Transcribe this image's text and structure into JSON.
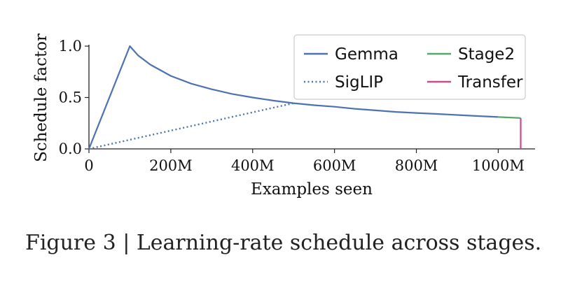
{
  "caption": "Figure 3 | Learning-rate schedule across stages.",
  "chart_data": {
    "type": "line",
    "xlabel": "Examples seen",
    "ylabel": "Schedule factor",
    "xlim": [
      0,
      1090
    ],
    "ylim": [
      0,
      1.0
    ],
    "x_ticks": [
      {
        "value": 0,
        "label": "0"
      },
      {
        "value": 200,
        "label": "200M"
      },
      {
        "value": 400,
        "label": "400M"
      },
      {
        "value": 600,
        "label": "600M"
      },
      {
        "value": 800,
        "label": "800M"
      },
      {
        "value": 1000,
        "label": "1000M"
      }
    ],
    "y_ticks": [
      {
        "value": 0.0,
        "label": "0.0"
      },
      {
        "value": 0.5,
        "label": "0.5"
      },
      {
        "value": 1.0,
        "label": "1.0"
      }
    ],
    "grid": false,
    "legend": {
      "position": "top-right",
      "columns": 2
    },
    "series": [
      {
        "name": "Gemma",
        "color": "#4c72b0",
        "style": "solid",
        "x": [
          0,
          100,
          120,
          150,
          200,
          250,
          300,
          350,
          400,
          450,
          500,
          550,
          600,
          650,
          700,
          750,
          800,
          850,
          900,
          950,
          1000
        ],
        "y": [
          0.0,
          1.0,
          0.91,
          0.82,
          0.71,
          0.635,
          0.58,
          0.535,
          0.5,
          0.47,
          0.445,
          0.425,
          0.41,
          0.39,
          0.375,
          0.36,
          0.35,
          0.34,
          0.33,
          0.32,
          0.31
        ]
      },
      {
        "name": "SigLIP",
        "color": "#4c72b0",
        "style": "dotted",
        "x": [
          0,
          500
        ],
        "y": [
          0.0,
          0.445
        ]
      },
      {
        "name": "Stage2",
        "color": "#55a868",
        "style": "solid",
        "x": [
          1000,
          1055
        ],
        "y": [
          0.31,
          0.3
        ]
      },
      {
        "name": "Transfer",
        "color": "#c44e8a",
        "style": "solid",
        "x": [
          1055,
          1055
        ],
        "y": [
          0.3,
          0.0
        ]
      }
    ]
  }
}
